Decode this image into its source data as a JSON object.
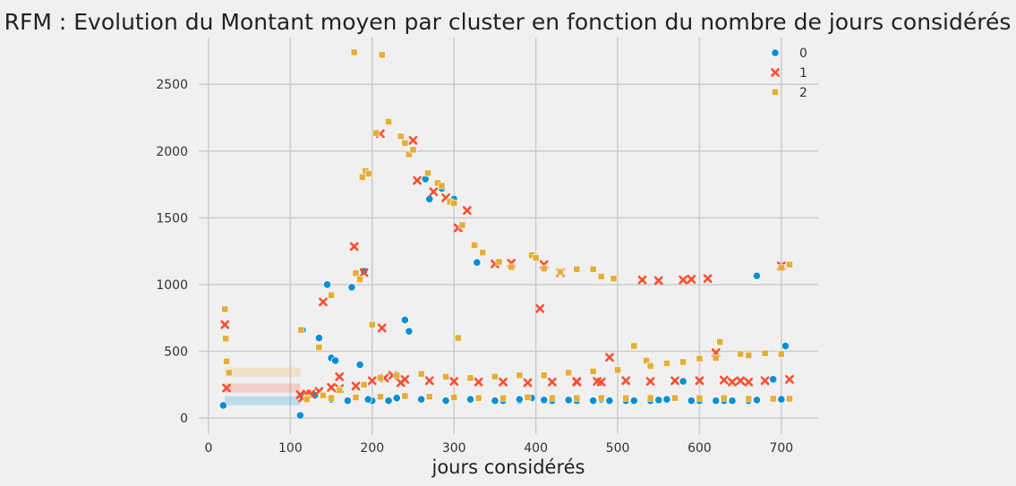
{
  "chart_data": {
    "type": "scatter",
    "title": "RFM : Evolution du Montant moyen par cluster en fonction du nombre de jours considérés",
    "xlabel": "jours considérés",
    "ylabel": "",
    "xlim": [
      -12,
      745
    ],
    "ylim": [
      -120,
      2850
    ],
    "xticks": [
      0,
      100,
      200,
      300,
      400,
      500,
      600,
      700
    ],
    "yticks": [
      0,
      500,
      1000,
      1500,
      2000,
      2500
    ],
    "grid": true,
    "legend_position": "top-right",
    "series": [
      {
        "name": "0",
        "marker": "circle",
        "color": "#008fd5",
        "band": {
          "x_from": 20,
          "x_to": 112,
          "y": 130
        },
        "x": [
          18,
          112,
          115,
          135,
          145,
          150,
          155,
          175,
          185,
          190,
          200,
          220,
          240,
          245,
          265,
          270,
          285,
          300,
          328,
          360,
          380,
          395,
          420,
          440,
          470,
          490,
          520,
          540,
          560,
          580,
          600,
          620,
          640,
          660,
          670,
          690,
          705,
          115,
          130,
          150,
          170,
          195,
          230,
          260,
          290,
          320,
          350,
          380,
          410,
          450,
          480,
          510,
          550,
          590,
          630,
          670,
          700
        ],
        "y": [
          95,
          20,
          660,
          600,
          1000,
          450,
          430,
          980,
          400,
          1100,
          130,
          130,
          735,
          650,
          1790,
          1640,
          1720,
          1640,
          1165,
          130,
          130,
          150,
          130,
          135,
          130,
          130,
          130,
          130,
          140,
          275,
          130,
          130,
          130,
          130,
          1065,
          290,
          540,
          160,
          170,
          140,
          130,
          140,
          150,
          140,
          130,
          140,
          130,
          140,
          135,
          130,
          140,
          130,
          135,
          130,
          130,
          135,
          140
        ]
      },
      {
        "name": "1",
        "marker": "x",
        "color": "#fc4f30",
        "band": {
          "x_from": 20,
          "x_to": 112,
          "y": 225
        },
        "x": [
          20,
          22,
          112,
          115,
          125,
          140,
          150,
          160,
          178,
          190,
          210,
          212,
          225,
          235,
          250,
          255,
          275,
          290,
          305,
          316,
          350,
          370,
          405,
          410,
          430,
          450,
          475,
          490,
          530,
          550,
          580,
          590,
          610,
          620,
          640,
          660,
          700,
          120,
          135,
          160,
          180,
          200,
          215,
          240,
          270,
          300,
          330,
          360,
          390,
          420,
          450,
          480,
          510,
          540,
          570,
          600,
          630,
          650,
          680,
          710
        ],
        "y": [
          700,
          225,
          175,
          150,
          180,
          870,
          230,
          310,
          1285,
          1090,
          2130,
          675,
          320,
          265,
          2080,
          1780,
          1695,
          1650,
          1425,
          1555,
          1155,
          1160,
          820,
          1150,
          1090,
          270,
          275,
          455,
          1035,
          1030,
          1035,
          1040,
          1045,
          490,
          270,
          270,
          1140,
          180,
          200,
          220,
          240,
          280,
          300,
          290,
          280,
          275,
          270,
          270,
          265,
          270,
          275,
          270,
          280,
          275,
          280,
          280,
          285,
          280,
          280,
          290
        ]
      },
      {
        "name": "2",
        "marker": "square",
        "color": "#e5ae38",
        "band": {
          "x_from": 20,
          "x_to": 112,
          "y": 345
        },
        "x": [
          20,
          21,
          22,
          25,
          113,
          135,
          150,
          178,
          180,
          185,
          188,
          192,
          196,
          200,
          205,
          212,
          220,
          235,
          240,
          245,
          250,
          268,
          280,
          285,
          295,
          300,
          305,
          310,
          325,
          335,
          355,
          370,
          395,
          400,
          410,
          430,
          450,
          470,
          480,
          495,
          520,
          535,
          560,
          600,
          625,
          650,
          680,
          700,
          710,
          120,
          140,
          160,
          190,
          210,
          230,
          260,
          290,
          320,
          350,
          380,
          410,
          440,
          470,
          500,
          540,
          580,
          620,
          660,
          700,
          120,
          150,
          180,
          210,
          240,
          270,
          300,
          330,
          360,
          390,
          420,
          450,
          480,
          510,
          540,
          570,
          600,
          630,
          660,
          690,
          710
        ],
        "y": [
          815,
          595,
          425,
          340,
          660,
          530,
          920,
          2740,
          1085,
          1040,
          1805,
          1850,
          1830,
          700,
          2135,
          2720,
          2220,
          2110,
          2060,
          1975,
          2010,
          1835,
          1760,
          1740,
          1620,
          1610,
          600,
          1445,
          1295,
          1240,
          1170,
          1130,
          1220,
          1200,
          1120,
          1095,
          1115,
          1115,
          1060,
          1045,
          540,
          430,
          410,
          445,
          570,
          480,
          485,
          1125,
          1150,
          150,
          170,
          210,
          250,
          300,
          320,
          330,
          310,
          300,
          310,
          320,
          320,
          340,
          350,
          360,
          390,
          420,
          450,
          470,
          480,
          140,
          150,
          155,
          160,
          165,
          160,
          155,
          150,
          150,
          155,
          150,
          150,
          150,
          150,
          150,
          150,
          150,
          150,
          145,
          145,
          145
        ]
      }
    ]
  }
}
